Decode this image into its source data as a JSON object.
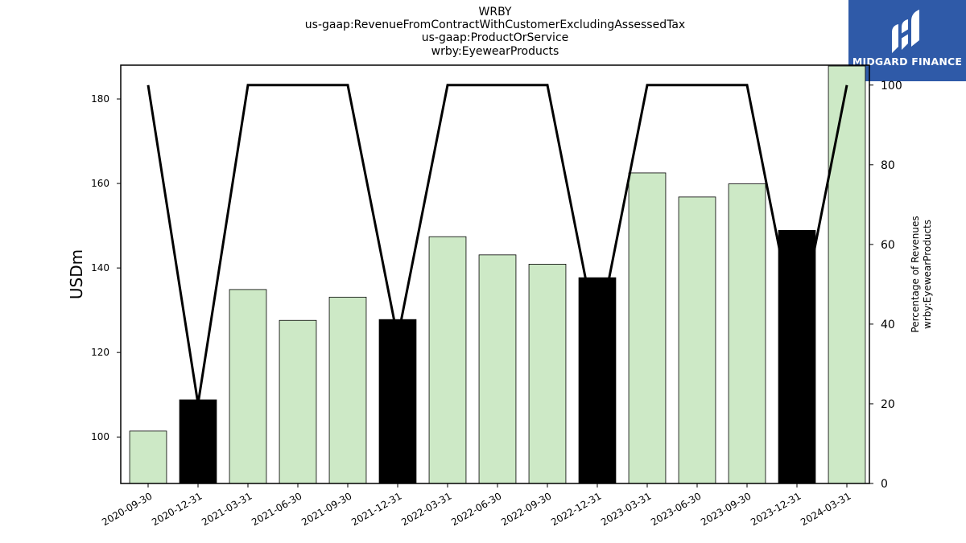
{
  "header": {
    "title_lines": [
      "WRBY",
      "us-gaap:RevenueFromContractWithCustomerExcludingAssessedTax",
      "us-gaap:ProductOrService",
      "wrby:EyewearProducts"
    ]
  },
  "logo": {
    "text": "MIDGARD FINANCE",
    "icon": "midgard-logo-icon",
    "background": "#2f5aa8"
  },
  "chart_data": {
    "type": "bar",
    "categories": [
      "2020-09-30",
      "2020-12-31",
      "2021-03-31",
      "2021-06-30",
      "2021-09-30",
      "2021-12-31",
      "2022-03-31",
      "2022-06-30",
      "2022-09-30",
      "2022-12-31",
      "2023-03-31",
      "2023-06-30",
      "2023-09-30",
      "2023-12-31",
      "2024-03-31"
    ],
    "series": [
      {
        "type": "bar",
        "axis": "left",
        "values": [
          101.4,
          108.8,
          134.9,
          127.6,
          133.1,
          127.8,
          147.4,
          143.1,
          140.9,
          137.7,
          162.5,
          156.8,
          159.9,
          148.9,
          187.8
        ],
        "colors": [
          "#cde9c6",
          "#000000",
          "#cde9c6",
          "#cde9c6",
          "#cde9c6",
          "#000000",
          "#cde9c6",
          "#cde9c6",
          "#cde9c6",
          "#000000",
          "#cde9c6",
          "#cde9c6",
          "#cde9c6",
          "#000000",
          "#cde9c6"
        ]
      },
      {
        "type": "line",
        "axis": "right",
        "values": [
          100,
          20,
          100,
          100,
          100,
          36.5,
          100,
          100,
          100,
          36.5,
          100,
          100,
          100,
          36.5,
          100
        ],
        "color": "#000000"
      }
    ],
    "ylabel": "USDm",
    "ylabel_right": [
      "Percentage of Revenues",
      "wrby:EyewearProducts"
    ],
    "ylim": [
      89,
      188
    ],
    "ylim_right": [
      0,
      105
    ],
    "yticks": [
      100,
      120,
      140,
      160,
      180
    ],
    "yticks_right": [
      0,
      20,
      40,
      60,
      80,
      100
    ],
    "grid": false
  }
}
